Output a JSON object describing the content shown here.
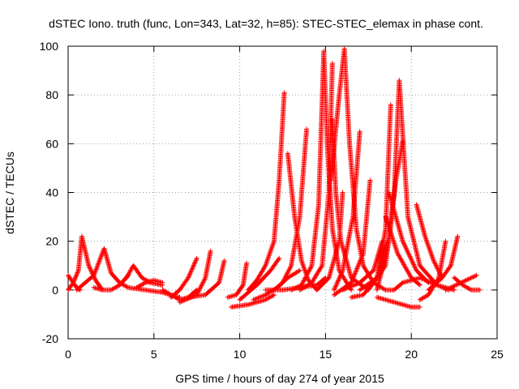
{
  "chart_data": {
    "type": "scatter",
    "title": "dSTEC Iono. truth (func, Lon=343, Lat=32, h=85): STEC-STEC_elemax in phase cont.",
    "xlabel": "GPS time / hours of day 274 of year 2015",
    "ylabel": "dSTEC  / TECUs",
    "xlim": [
      0,
      25
    ],
    "ylim": [
      -20,
      100
    ],
    "xticks": [
      0,
      5,
      10,
      15,
      20,
      25
    ],
    "yticks": [
      -20,
      0,
      20,
      40,
      60,
      80,
      100
    ],
    "grid": true,
    "marker": "+",
    "color": "#ff0000",
    "arcs": [
      {
        "x": [
          0.0,
          0.3,
          0.5,
          0.7
        ],
        "y": [
          6,
          3,
          1,
          0
        ]
      },
      {
        "x": [
          0.0,
          0.3,
          0.6,
          0.8
        ],
        "y": [
          0,
          3,
          8,
          22
        ]
      },
      {
        "x": [
          0.8,
          1.2,
          1.6,
          2.0
        ],
        "y": [
          22,
          10,
          4,
          0
        ]
      },
      {
        "x": [
          0.5,
          1.0,
          1.5,
          2.1
        ],
        "y": [
          0,
          3,
          6,
          17
        ]
      },
      {
        "x": [
          2.1,
          2.5,
          3.0,
          3.5
        ],
        "y": [
          17,
          7,
          3,
          1
        ]
      },
      {
        "x": [
          1.5,
          2.0,
          2.5,
          3.0,
          3.5
        ],
        "y": [
          1,
          0,
          0,
          2,
          6
        ]
      },
      {
        "x": [
          2.5,
          3.0,
          3.4,
          3.8
        ],
        "y": [
          0,
          2,
          5,
          10
        ]
      },
      {
        "x": [
          3.8,
          4.3,
          4.8,
          5.5
        ],
        "y": [
          10,
          5,
          3,
          2
        ]
      },
      {
        "x": [
          3.5,
          4.5,
          5.5,
          6.0,
          6.5
        ],
        "y": [
          1,
          0,
          -1,
          -2,
          -3
        ]
      },
      {
        "x": [
          4.0,
          4.5,
          5.0,
          5.5
        ],
        "y": [
          1,
          3,
          4,
          3
        ]
      },
      {
        "x": [
          5.5,
          6.0,
          6.5,
          7.0,
          7.5
        ],
        "y": [
          0,
          -2,
          -4,
          -3,
          0
        ]
      },
      {
        "x": [
          6.0,
          6.5,
          7.0,
          7.5
        ],
        "y": [
          -3,
          0,
          5,
          13
        ]
      },
      {
        "x": [
          6.5,
          7.5,
          8.0,
          8.3
        ],
        "y": [
          -5,
          -2,
          5,
          16
        ]
      },
      {
        "x": [
          7.0,
          8.0,
          8.8,
          9.1
        ],
        "y": [
          -3,
          -2,
          3,
          12
        ]
      },
      {
        "x": [
          9.3,
          9.8,
          10.2,
          10.4
        ],
        "y": [
          -3,
          -2,
          2,
          11
        ]
      },
      {
        "x": [
          9.5,
          10.5,
          11.5,
          12.0
        ],
        "y": [
          -7,
          -6,
          -4,
          -2
        ]
      },
      {
        "x": [
          10.0,
          11.0,
          11.8,
          12.3
        ],
        "y": [
          -4,
          2,
          8,
          13
        ]
      },
      {
        "x": [
          10.5,
          11.0,
          11.5,
          12.0,
          12.3,
          12.6
        ],
        "y": [
          0,
          4,
          10,
          20,
          45,
          81
        ]
      },
      {
        "x": [
          10.8,
          11.5,
          12.2,
          12.8,
          13.5
        ],
        "y": [
          -4,
          -2,
          1,
          5,
          8
        ]
      },
      {
        "x": [
          12.0,
          12.5,
          13.0,
          13.5,
          13.9
        ],
        "y": [
          0,
          3,
          10,
          30,
          66
        ]
      },
      {
        "x": [
          12.8,
          13.2,
          13.6,
          14.0,
          14.5
        ],
        "y": [
          56,
          30,
          12,
          4,
          0
        ]
      },
      {
        "x": [
          11.5,
          12.5,
          13.5,
          14.5,
          15.0
        ],
        "y": [
          0,
          0,
          1,
          2,
          5
        ]
      },
      {
        "x": [
          13.0,
          13.6,
          14.2,
          14.6,
          14.9
        ],
        "y": [
          0,
          2,
          10,
          35,
          98
        ]
      },
      {
        "x": [
          14.9,
          15.1,
          15.4,
          15.8,
          16.5
        ],
        "y": [
          98,
          60,
          25,
          8,
          0
        ]
      },
      {
        "x": [
          13.5,
          14.2,
          14.8,
          15.2,
          15.4
        ],
        "y": [
          0,
          3,
          10,
          40,
          93
        ]
      },
      {
        "x": [
          15.4,
          15.6,
          15.9,
          16.5,
          17.5
        ],
        "y": [
          70,
          40,
          20,
          5,
          0
        ]
      },
      {
        "x": [
          14.5,
          15.2,
          15.8,
          16.0
        ],
        "y": [
          0,
          5,
          20,
          40
        ]
      },
      {
        "x": [
          15.3,
          15.8,
          16.1,
          16.4,
          16.8
        ],
        "y": [
          45,
          80,
          99,
          60,
          25
        ]
      },
      {
        "x": [
          15.5,
          16.0,
          16.6,
          17.0
        ],
        "y": [
          0,
          8,
          30,
          65
        ]
      },
      {
        "x": [
          16.8,
          17.2,
          17.8,
          18.5,
          19.0
        ],
        "y": [
          25,
          10,
          3,
          0,
          0
        ]
      },
      {
        "x": [
          15.5,
          16.5,
          17.2,
          17.6
        ],
        "y": [
          -2,
          3,
          15,
          45
        ]
      },
      {
        "x": [
          16.0,
          17.0,
          17.8,
          18.3
        ],
        "y": [
          0,
          3,
          8,
          20
        ]
      },
      {
        "x": [
          16.5,
          17.2,
          18.0,
          18.6
        ],
        "y": [
          -3,
          -2,
          5,
          20
        ]
      },
      {
        "x": [
          17.0,
          18.0,
          18.5,
          18.8
        ],
        "y": [
          0,
          5,
          25,
          76
        ]
      },
      {
        "x": [
          18.5,
          19.2,
          20.0,
          20.5
        ],
        "y": [
          30,
          15,
          5,
          2
        ]
      },
      {
        "x": [
          17.5,
          18.5,
          19.0,
          19.3
        ],
        "y": [
          0,
          10,
          40,
          86
        ]
      },
      {
        "x": [
          19.3,
          19.8,
          20.5,
          21.5,
          22.5
        ],
        "y": [
          86,
          30,
          10,
          2,
          0
        ]
      },
      {
        "x": [
          18.0,
          18.7,
          19.1,
          19.5
        ],
        "y": [
          0,
          20,
          45,
          61
        ]
      },
      {
        "x": [
          18.7,
          19.5,
          20.3,
          21.0
        ],
        "y": [
          40,
          20,
          8,
          3
        ]
      },
      {
        "x": [
          18.0,
          19.0,
          20.0,
          20.5
        ],
        "y": [
          -3,
          -5,
          -7,
          -7
        ]
      },
      {
        "x": [
          19.0,
          19.5,
          20.5,
          21.5,
          22.2
        ],
        "y": [
          0,
          3,
          5,
          2,
          0
        ]
      },
      {
        "x": [
          20.3,
          20.8,
          21.3,
          21.8
        ],
        "y": [
          35,
          22,
          12,
          5
        ]
      },
      {
        "x": [
          20.5,
          21.0,
          21.6,
          22.0
        ],
        "y": [
          -4,
          -2,
          5,
          20
        ]
      },
      {
        "x": [
          21.0,
          21.8,
          22.3,
          22.7
        ],
        "y": [
          0,
          5,
          10,
          22
        ]
      },
      {
        "x": [
          22.0,
          22.6,
          23.2,
          23.8
        ],
        "y": [
          0,
          2,
          4,
          6
        ]
      },
      {
        "x": [
          22.5,
          23.0,
          23.5,
          24.0
        ],
        "y": [
          5,
          2,
          0,
          0
        ]
      }
    ]
  }
}
